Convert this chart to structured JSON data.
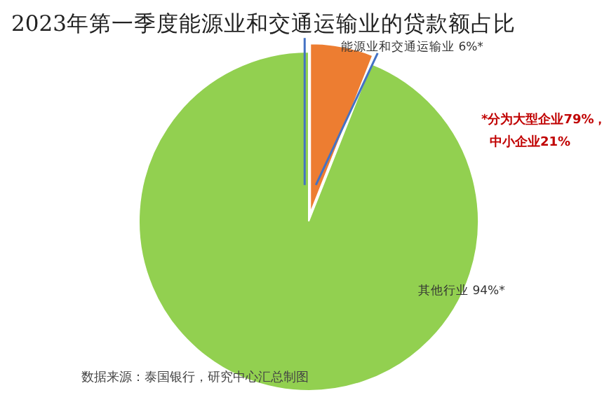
{
  "chart_data": {
    "type": "pie",
    "title": "2023年第一季度能源业和交通运输业的贷款额占比",
    "categories": [
      "能源业和交通运输业",
      "其他行业"
    ],
    "values": [
      6,
      94
    ],
    "value_labels": [
      "6%*",
      "94%*"
    ],
    "colors": [
      "#ed7d31",
      "#92d050"
    ],
    "annotations": [
      "*分为大型企业79%，",
      "中小企业21%",
      "数据来源：泰国银行，研究中心汇总制图"
    ]
  }
}
